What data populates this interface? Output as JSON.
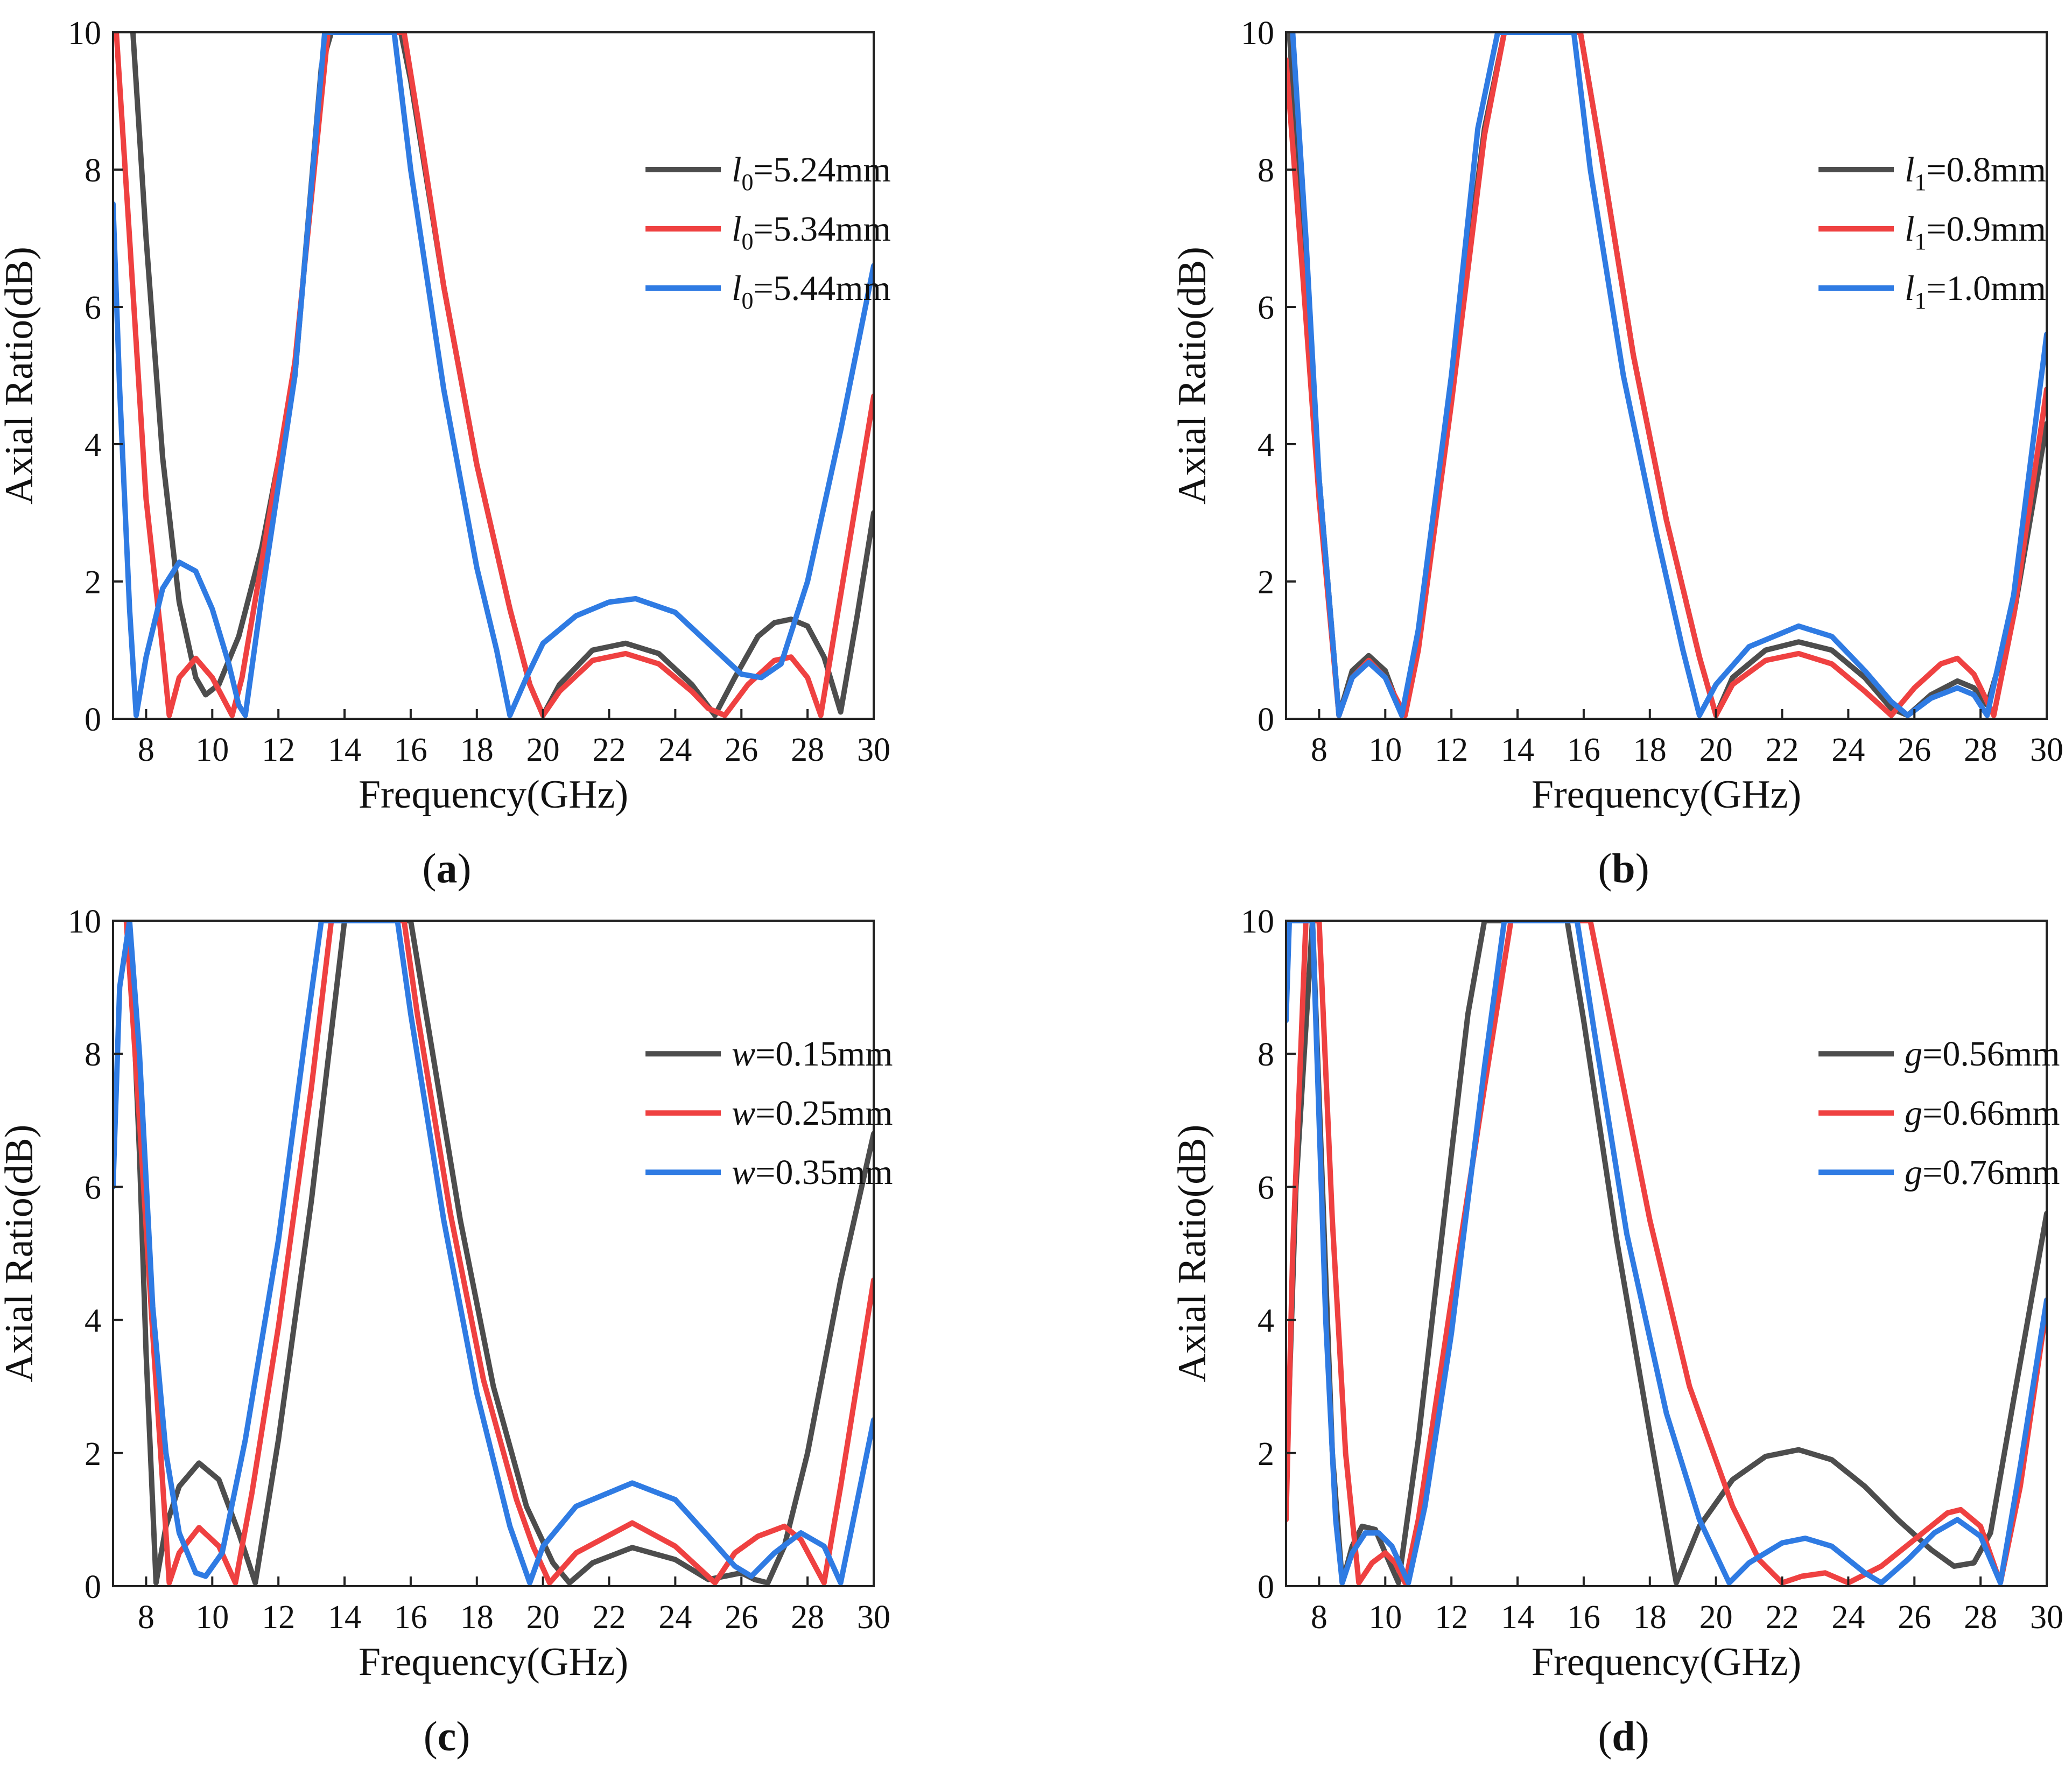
{
  "figure": {
    "colors": {
      "black": "#4d4d4d",
      "red": "#ef4141",
      "blue": "#2f7be3",
      "axis": "#222222"
    },
    "x_axis_label": "Frequency(GHz)",
    "y_axis_label": "Axial Ratio(dB)"
  },
  "chart_data": [
    {
      "panel": "(a)",
      "caption_letter": "a",
      "type": "line",
      "xlabel": "Frequency(GHz)",
      "ylabel": "Axial Ratio(dB)",
      "xlim": [
        7,
        30
      ],
      "ylim": [
        0,
        10
      ],
      "xticks": [
        8,
        10,
        12,
        14,
        16,
        18,
        20,
        22,
        24,
        26,
        28,
        30
      ],
      "yticks": [
        0,
        2,
        4,
        6,
        8,
        10
      ],
      "legend_position": "upper-right",
      "series": [
        {
          "name": "l0=5.24mm",
          "label_var": "l",
          "label_sub": "0",
          "label_rest": "=5.24mm",
          "color": "#4d4d4d",
          "x": [
            7.6,
            8.0,
            8.5,
            9.0,
            9.5,
            9.8,
            10.2,
            10.8,
            11.5,
            12.5,
            13.3,
            13.6,
            15.7,
            16.0,
            17.0,
            18.0,
            19.0,
            19.6,
            20.0,
            20.5,
            21.5,
            22.5,
            23.5,
            24.5,
            25.2,
            25.8,
            26.5,
            27.0,
            27.5,
            28.0,
            28.5,
            29.0,
            29.5,
            30.0
          ],
          "y": [
            10,
            7.0,
            3.8,
            1.7,
            0.6,
            0.35,
            0.5,
            1.2,
            2.5,
            5.0,
            9.5,
            10,
            10,
            9.3,
            6.3,
            3.7,
            1.6,
            0.5,
            0.05,
            0.5,
            1.0,
            1.1,
            0.95,
            0.5,
            0.05,
            0.6,
            1.2,
            1.4,
            1.45,
            1.35,
            0.9,
            0.1,
            1.5,
            3.0
          ]
        },
        {
          "name": "l0=5.34mm",
          "label_var": "l",
          "label_sub": "0",
          "label_rest": "=5.34mm",
          "color": "#ef4141",
          "x": [
            7.1,
            7.5,
            8.0,
            8.5,
            8.7,
            9.0,
            9.5,
            10.0,
            10.6,
            10.9,
            11.5,
            12.5,
            13.5,
            15.8,
            16.2,
            17.0,
            18.0,
            19.0,
            19.6,
            20.0,
            20.5,
            21.5,
            22.5,
            23.5,
            24.5,
            25.0,
            25.5,
            26.2,
            27.0,
            27.5,
            28.0,
            28.4,
            29.0,
            30.0
          ],
          "y": [
            10,
            7.0,
            3.2,
            1.0,
            0.05,
            0.6,
            0.88,
            0.6,
            0.05,
            0.6,
            2.3,
            5.2,
            10,
            10,
            8.8,
            6.3,
            3.7,
            1.6,
            0.5,
            0.05,
            0.4,
            0.85,
            0.95,
            0.8,
            0.4,
            0.15,
            0.05,
            0.5,
            0.85,
            0.9,
            0.6,
            0.05,
            1.8,
            4.7
          ]
        },
        {
          "name": "l0=5.44mm",
          "label_var": "l",
          "label_sub": "0",
          "label_rest": "=5.44mm",
          "color": "#2f7be3",
          "x": [
            7.0,
            7.2,
            7.5,
            7.7,
            8.0,
            8.5,
            9.0,
            9.5,
            10.0,
            10.5,
            10.8,
            11.0,
            11.5,
            12.5,
            13.4,
            15.5,
            16.0,
            17.0,
            18.0,
            18.6,
            19.0,
            19.5,
            20.0,
            21.0,
            22.0,
            22.8,
            24.0,
            25.0,
            26.0,
            26.6,
            27.2,
            28.0,
            29.0,
            30.0
          ],
          "y": [
            7.5,
            4.8,
            1.6,
            0.05,
            0.9,
            1.9,
            2.28,
            2.15,
            1.6,
            0.8,
            0.2,
            0.05,
            1.8,
            5.0,
            10,
            10,
            8.0,
            4.8,
            2.2,
            1.0,
            0.05,
            0.6,
            1.1,
            1.5,
            1.7,
            1.75,
            1.55,
            1.1,
            0.65,
            0.6,
            0.8,
            2.0,
            4.2,
            6.6
          ]
        }
      ]
    },
    {
      "panel": "(b)",
      "caption_letter": "b",
      "type": "line",
      "xlabel": "Frequency(GHz)",
      "ylabel": "Axial Ratio(dB)",
      "xlim": [
        7,
        30
      ],
      "ylim": [
        0,
        10
      ],
      "xticks": [
        8,
        10,
        12,
        14,
        16,
        18,
        20,
        22,
        24,
        26,
        28,
        30
      ],
      "yticks": [
        0,
        2,
        4,
        6,
        8,
        10
      ],
      "legend_position": "upper-right",
      "series": [
        {
          "name": "l1=0.8mm",
          "label_var": "l",
          "label_sub": "1",
          "label_rest": "=0.8mm",
          "color": "#4d4d4d",
          "x": [
            7.1,
            7.5,
            8.0,
            8.6,
            9.0,
            9.5,
            10.0,
            10.5,
            11.0,
            12.0,
            13.0,
            13.6,
            15.9,
            16.5,
            17.5,
            18.5,
            19.5,
            20.0,
            20.5,
            21.5,
            22.5,
            23.5,
            24.5,
            25.3,
            25.8,
            26.5,
            27.3,
            27.8,
            28.2,
            29.0,
            30.0
          ],
          "y": [
            10,
            7.0,
            3.5,
            0.05,
            0.7,
            0.92,
            0.7,
            0.05,
            1.2,
            4.8,
            8.6,
            10,
            10,
            8.3,
            5.3,
            2.9,
            0.9,
            0.05,
            0.6,
            1.0,
            1.12,
            1.0,
            0.6,
            0.15,
            0.05,
            0.35,
            0.55,
            0.45,
            0.2,
            1.5,
            4.3
          ]
        },
        {
          "name": "l1=0.9mm",
          "label_var": "l",
          "label_sub": "1",
          "label_rest": "=0.9mm",
          "color": "#ef4141",
          "x": [
            7.0,
            7.5,
            8.0,
            8.6,
            9.0,
            9.5,
            10.0,
            10.6,
            11.0,
            12.0,
            13.0,
            13.6,
            15.9,
            16.5,
            17.5,
            18.5,
            19.5,
            20.0,
            20.5,
            21.5,
            22.5,
            23.5,
            24.5,
            25.3,
            26.0,
            26.8,
            27.3,
            27.8,
            28.4,
            29.0,
            30.0
          ],
          "y": [
            9.6,
            6.5,
            3.2,
            0.05,
            0.6,
            0.85,
            0.6,
            0.05,
            1.0,
            4.6,
            8.5,
            10,
            10,
            8.3,
            5.3,
            2.9,
            0.9,
            0.05,
            0.5,
            0.85,
            0.95,
            0.8,
            0.4,
            0.05,
            0.45,
            0.8,
            0.88,
            0.65,
            0.05,
            1.5,
            4.8
          ]
        },
        {
          "name": "l1=1.0mm",
          "label_var": "l",
          "label_sub": "1",
          "label_rest": "=1.0mm",
          "color": "#2f7be3",
          "x": [
            7.2,
            7.6,
            8.0,
            8.6,
            9.0,
            9.5,
            10.0,
            10.5,
            11.0,
            12.0,
            12.8,
            13.4,
            15.7,
            16.2,
            17.2,
            18.2,
            19.0,
            19.5,
            20.0,
            21.0,
            22.5,
            23.5,
            24.5,
            25.3,
            25.8,
            26.5,
            27.3,
            27.8,
            28.2,
            29.0,
            30.0
          ],
          "y": [
            10,
            7.0,
            3.5,
            0.05,
            0.6,
            0.82,
            0.6,
            0.05,
            1.3,
            5.0,
            8.6,
            10,
            10,
            8.0,
            5.0,
            2.7,
            1.0,
            0.05,
            0.5,
            1.05,
            1.35,
            1.2,
            0.7,
            0.25,
            0.05,
            0.3,
            0.45,
            0.35,
            0.05,
            1.8,
            5.6
          ]
        }
      ]
    },
    {
      "panel": "(c)",
      "caption_letter": "c",
      "type": "line",
      "xlabel": "Frequency(GHz)",
      "ylabel": "Axial Ratio(dB)",
      "xlim": [
        7,
        30
      ],
      "ylim": [
        0,
        10
      ],
      "xticks": [
        8,
        10,
        12,
        14,
        16,
        18,
        20,
        22,
        24,
        26,
        28,
        30
      ],
      "yticks": [
        0,
        2,
        4,
        6,
        8,
        10
      ],
      "legend_position": "upper-right",
      "series": [
        {
          "name": "w=0.15mm",
          "label_var": "w",
          "label_sub": "",
          "label_rest": "=0.15mm",
          "color": "#4d4d4d",
          "x": [
            7.5,
            7.8,
            8.0,
            8.3,
            8.6,
            9.0,
            9.6,
            10.2,
            10.8,
            11.3,
            12.0,
            13.0,
            14.0,
            14.2,
            16.0,
            16.5,
            17.5,
            18.5,
            19.5,
            20.3,
            20.8,
            21.5,
            22.7,
            24.0,
            25.0,
            25.5,
            26.0,
            26.4,
            26.8,
            27.3,
            28.0,
            29.0,
            30.0
          ],
          "y": [
            10,
            6.5,
            3.5,
            0.05,
            0.9,
            1.5,
            1.85,
            1.6,
            0.8,
            0.05,
            2.2,
            5.8,
            10,
            10,
            10,
            8.5,
            5.5,
            3.0,
            1.2,
            0.35,
            0.05,
            0.35,
            0.58,
            0.4,
            0.1,
            0.15,
            0.2,
            0.1,
            0.05,
            0.6,
            2.0,
            4.6,
            6.8
          ]
        },
        {
          "name": "w=0.25mm",
          "label_var": "w",
          "label_sub": "",
          "label_rest": "=0.25mm",
          "color": "#ef4141",
          "x": [
            7.4,
            7.8,
            8.2,
            8.7,
            9.0,
            9.6,
            10.2,
            10.7,
            11.2,
            12.0,
            13.0,
            13.6,
            15.8,
            16.2,
            17.2,
            18.2,
            19.2,
            19.7,
            20.2,
            21.0,
            22.7,
            24.0,
            25.2,
            25.8,
            26.5,
            27.3,
            27.8,
            28.5,
            29.0,
            30.0
          ],
          "y": [
            10,
            7.0,
            3.8,
            0.05,
            0.5,
            0.88,
            0.6,
            0.05,
            1.4,
            3.9,
            7.5,
            10,
            10,
            8.6,
            5.6,
            3.1,
            1.3,
            0.6,
            0.05,
            0.5,
            0.95,
            0.6,
            0.05,
            0.5,
            0.75,
            0.9,
            0.7,
            0.05,
            1.5,
            4.6
          ]
        },
        {
          "name": "w=0.35mm",
          "label_var": "w",
          "label_sub": "",
          "label_rest": "=0.35mm",
          "color": "#2f7be3",
          "x": [
            7.0,
            7.2,
            7.5,
            7.8,
            8.2,
            8.6,
            9.0,
            9.5,
            9.8,
            10.3,
            11.0,
            12.0,
            12.8,
            13.3,
            15.6,
            16.0,
            17.0,
            18.0,
            19.0,
            19.6,
            20.0,
            21.0,
            22.7,
            24.0,
            25.0,
            25.8,
            26.3,
            27.0,
            27.8,
            28.5,
            29.0,
            30.0
          ],
          "y": [
            6.0,
            9.0,
            10,
            8.0,
            4.2,
            2.0,
            0.8,
            0.2,
            0.15,
            0.5,
            2.2,
            5.2,
            8.2,
            10,
            10,
            8.6,
            5.5,
            2.9,
            0.9,
            0.05,
            0.6,
            1.2,
            1.55,
            1.3,
            0.75,
            0.3,
            0.15,
            0.5,
            0.8,
            0.6,
            0.05,
            2.5
          ]
        }
      ]
    },
    {
      "panel": "(d)",
      "caption_letter": "d",
      "type": "line",
      "xlabel": "Frequency(GHz)",
      "ylabel": "Axial Ratio(dB)",
      "xlim": [
        7,
        30
      ],
      "ylim": [
        0,
        10
      ],
      "xticks": [
        8,
        10,
        12,
        14,
        16,
        18,
        20,
        22,
        24,
        26,
        28,
        30
      ],
      "yticks": [
        0,
        2,
        4,
        6,
        8,
        10
      ],
      "legend_position": "upper-right",
      "series": [
        {
          "name": "g=0.56mm",
          "label_var": "g",
          "label_sub": "",
          "label_rest": "=0.56mm",
          "color": "#4d4d4d",
          "x": [
            7.0,
            7.3,
            7.8,
            8.1,
            8.4,
            8.7,
            9.0,
            9.3,
            9.7,
            10.0,
            10.4,
            11.0,
            12.0,
            12.5,
            13.0,
            15.5,
            16.0,
            17.0,
            18.0,
            18.8,
            19.5,
            20.5,
            21.5,
            22.5,
            23.5,
            24.5,
            25.5,
            26.5,
            27.2,
            27.8,
            28.3,
            29.0,
            30.0
          ],
          "y": [
            1.5,
            6.0,
            10,
            6.0,
            2.0,
            0.05,
            0.6,
            0.9,
            0.85,
            0.5,
            0.05,
            2.2,
            6.5,
            8.6,
            10,
            10,
            8.5,
            5.2,
            2.3,
            0.05,
            0.9,
            1.6,
            1.95,
            2.05,
            1.9,
            1.5,
            1.0,
            0.55,
            0.3,
            0.35,
            0.8,
            2.8,
            5.6
          ]
        },
        {
          "name": "g=0.66mm",
          "label_var": "g",
          "label_sub": "",
          "label_rest": "=0.66mm",
          "color": "#ef4141",
          "x": [
            7.0,
            7.2,
            7.6,
            8.0,
            8.4,
            8.8,
            9.2,
            9.6,
            10.0,
            10.3,
            10.6,
            11.0,
            12.0,
            13.0,
            13.8,
            16.2,
            16.8,
            18.0,
            19.2,
            20.5,
            21.3,
            22.0,
            22.6,
            23.3,
            24.0,
            25.0,
            26.0,
            27.0,
            27.4,
            28.0,
            28.6,
            29.2,
            30.0
          ],
          "y": [
            1.0,
            5.0,
            10,
            10,
            5.5,
            2.0,
            0.05,
            0.35,
            0.5,
            0.35,
            0.05,
            1.0,
            4.3,
            7.5,
            10,
            10,
            8.5,
            5.5,
            3.0,
            1.2,
            0.4,
            0.05,
            0.15,
            0.2,
            0.05,
            0.3,
            0.7,
            1.1,
            1.15,
            0.9,
            0.05,
            1.5,
            4.2
          ]
        },
        {
          "name": "g=0.76mm",
          "label_var": "g",
          "label_sub": "",
          "label_rest": "=0.76mm",
          "color": "#2f7be3",
          "x": [
            7.0,
            7.1,
            7.4,
            7.8,
            8.2,
            8.5,
            8.7,
            9.0,
            9.4,
            9.8,
            10.2,
            10.7,
            11.2,
            12.0,
            13.0,
            13.6,
            15.8,
            16.3,
            17.3,
            18.5,
            19.5,
            20.4,
            21.0,
            22.0,
            22.7,
            23.5,
            24.5,
            25.0,
            25.8,
            26.6,
            27.3,
            28.0,
            28.6,
            29.2,
            30.0
          ],
          "y": [
            8.5,
            10,
            10,
            10,
            4.0,
            1.0,
            0.05,
            0.5,
            0.8,
            0.8,
            0.6,
            0.05,
            1.2,
            3.8,
            7.8,
            10,
            10,
            8.4,
            5.3,
            2.6,
            1.0,
            0.05,
            0.35,
            0.65,
            0.72,
            0.6,
            0.2,
            0.05,
            0.4,
            0.8,
            1.0,
            0.75,
            0.05,
            1.8,
            4.3
          ]
        }
      ]
    }
  ]
}
